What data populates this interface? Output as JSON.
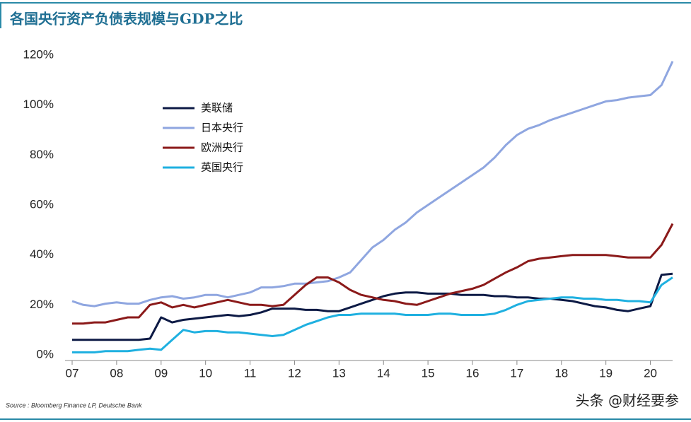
{
  "chart_data": {
    "type": "line",
    "title": "各国央行资产负债表规模与GDP之比",
    "source": "Source : Bloomberg Finance LP, Deutsche Bank",
    "x": [
      7,
      7.25,
      7.5,
      7.75,
      8,
      8.25,
      8.5,
      8.75,
      9,
      9.25,
      9.5,
      9.75,
      10,
      10.25,
      10.5,
      10.75,
      11,
      11.25,
      11.5,
      11.75,
      12,
      12.25,
      12.5,
      12.75,
      13,
      13.25,
      13.5,
      13.75,
      14,
      14.25,
      14.5,
      14.75,
      15,
      15.25,
      15.5,
      15.75,
      16,
      16.25,
      16.5,
      16.75,
      17,
      17.25,
      17.5,
      17.75,
      18,
      18.25,
      18.5,
      18.75,
      19,
      19.25,
      19.5,
      19.75,
      20,
      20.25,
      20.5
    ],
    "series": [
      {
        "name": "美联储",
        "color": "#0d1a45",
        "values": [
          6,
          6,
          6,
          6,
          6,
          6,
          6,
          6.5,
          15,
          13,
          14,
          14.5,
          15,
          15.5,
          16,
          15.5,
          16,
          17,
          18.5,
          18.5,
          18.5,
          18,
          18,
          17.5,
          17.5,
          19,
          20.5,
          22,
          23.5,
          24.5,
          25,
          25,
          24.5,
          24.5,
          24.5,
          24,
          24,
          24,
          23.5,
          23.5,
          23,
          23,
          22.5,
          22.5,
          22,
          21.5,
          20.5,
          19.5,
          19,
          18,
          17.5,
          18.5,
          19.5,
          32,
          32.5
        ]
      },
      {
        "name": "日本央行",
        "color": "#8fa6e0",
        "values": [
          21.5,
          20,
          19.5,
          20.5,
          21,
          20.5,
          20.5,
          22,
          23,
          23.5,
          22.5,
          23,
          24,
          24,
          23,
          24,
          25,
          27,
          27,
          27.5,
          28.5,
          28.5,
          29,
          29.5,
          31,
          33,
          38,
          43,
          46,
          50,
          53,
          57,
          60,
          63,
          66,
          69,
          72,
          75,
          79,
          84,
          88,
          90.5,
          92,
          94,
          95.5,
          97,
          98.5,
          100,
          101.5,
          102,
          103,
          103.5,
          104,
          108,
          117.5
        ]
      },
      {
        "name": "欧洲央行",
        "color": "#8b1a1a",
        "values": [
          12.5,
          12.5,
          13,
          13,
          14,
          15,
          15,
          20,
          21,
          19,
          20,
          19,
          20,
          21,
          22,
          21,
          20,
          20,
          19.5,
          20,
          24,
          28,
          31,
          31,
          29,
          26,
          24,
          23,
          22,
          21.5,
          20.5,
          20,
          21.5,
          23,
          24.5,
          25.5,
          26.5,
          28,
          30.5,
          33,
          35,
          37.5,
          38.5,
          39,
          39.5,
          40,
          40,
          40,
          40,
          39.5,
          39,
          39,
          39,
          44,
          52.5
        ]
      },
      {
        "name": "英国央行",
        "color": "#1fb0e0",
        "values": [
          1,
          1,
          1,
          1.5,
          1.5,
          1.5,
          2,
          2.5,
          2,
          6,
          10,
          9,
          9.5,
          9.5,
          9,
          9,
          8.5,
          8,
          7.5,
          8,
          10,
          12,
          13.5,
          15,
          16,
          16,
          16.5,
          16.5,
          16.5,
          16.5,
          16,
          16,
          16,
          16.5,
          16.5,
          16,
          16,
          16,
          16.5,
          18,
          20,
          21.5,
          22,
          22.5,
          23,
          23,
          22.5,
          22.5,
          22,
          22,
          21.5,
          21.5,
          21,
          28,
          31
        ]
      }
    ],
    "xlim": [
      7,
      20.5
    ],
    "xticks": [
      {
        "value": 7,
        "label": "07"
      },
      {
        "value": 8,
        "label": "08"
      },
      {
        "value": 9,
        "label": "09"
      },
      10,
      11,
      12,
      13,
      14,
      15,
      16,
      17,
      18,
      19,
      20
    ],
    "ylim": [
      0,
      120
    ],
    "yticks": [
      {
        "value": 0,
        "label": "0%"
      },
      {
        "value": 20,
        "label": "20%"
      },
      {
        "value": 40,
        "label": "40%"
      },
      {
        "value": 60,
        "label": "60%"
      },
      {
        "value": 80,
        "label": "80%"
      },
      {
        "value": 100,
        "label": "100%"
      },
      {
        "value": 120,
        "label": "120%"
      }
    ],
    "grid": false,
    "legend": "upper left"
  },
  "watermark": "头条 @财经要参"
}
